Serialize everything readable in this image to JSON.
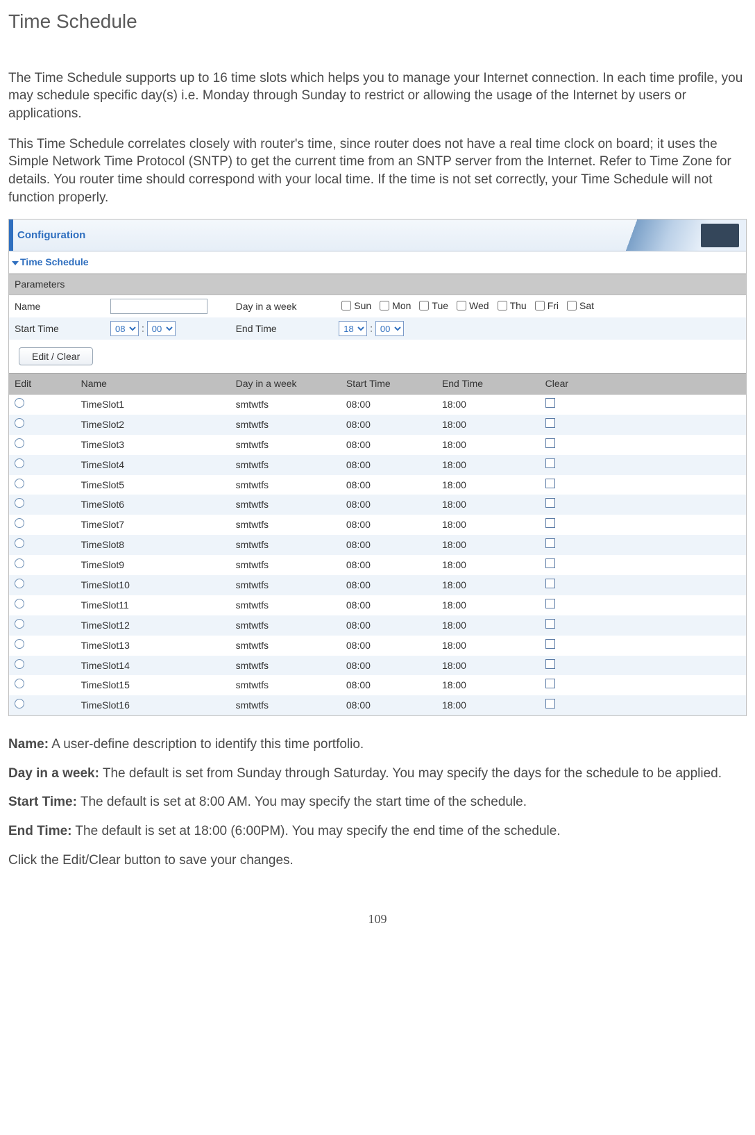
{
  "title": "Time Schedule",
  "intro_p1": "The Time Schedule supports up to 16 time slots which helps you to manage your Internet connection. In each time profile, you may schedule specific day(s) i.e. Monday through Sunday to restrict or allowing the usage of the Internet by users or applications.",
  "intro_p2": "This Time Schedule correlates closely with router's time, since router does not have a real time clock on board; it uses the Simple Network Time Protocol (SNTP) to get the current time from an SNTP server from the Internet. Refer to Time Zone for details.  You router time should correspond with your local time.  If the time is not set correctly, your Time Schedule will not function properly.",
  "screenshot": {
    "config_label": "Configuration",
    "section_title": "Time Schedule",
    "parameters_label": "Parameters",
    "labels": {
      "name": "Name",
      "day_in_week": "Day in a week",
      "start_time": "Start Time",
      "end_time": "End Time"
    },
    "name_value": "",
    "days": [
      "Sun",
      "Mon",
      "Tue",
      "Wed",
      "Thu",
      "Fri",
      "Sat"
    ],
    "start_hour": "08",
    "start_min": "00",
    "end_hour": "18",
    "end_min": "00",
    "button_label": "Edit / Clear",
    "columns": {
      "edit": "Edit",
      "name": "Name",
      "day": "Day in a week",
      "start": "Start Time",
      "end": "End Time",
      "clear": "Clear"
    },
    "slots": [
      {
        "name": "TimeSlot1",
        "day": "smtwtfs",
        "start": "08:00",
        "end": "18:00"
      },
      {
        "name": "TimeSlot2",
        "day": "smtwtfs",
        "start": "08:00",
        "end": "18:00"
      },
      {
        "name": "TimeSlot3",
        "day": "smtwtfs",
        "start": "08:00",
        "end": "18:00"
      },
      {
        "name": "TimeSlot4",
        "day": "smtwtfs",
        "start": "08:00",
        "end": "18:00"
      },
      {
        "name": "TimeSlot5",
        "day": "smtwtfs",
        "start": "08:00",
        "end": "18:00"
      },
      {
        "name": "TimeSlot6",
        "day": "smtwtfs",
        "start": "08:00",
        "end": "18:00"
      },
      {
        "name": "TimeSlot7",
        "day": "smtwtfs",
        "start": "08:00",
        "end": "18:00"
      },
      {
        "name": "TimeSlot8",
        "day": "smtwtfs",
        "start": "08:00",
        "end": "18:00"
      },
      {
        "name": "TimeSlot9",
        "day": "smtwtfs",
        "start": "08:00",
        "end": "18:00"
      },
      {
        "name": "TimeSlot10",
        "day": "smtwtfs",
        "start": "08:00",
        "end": "18:00"
      },
      {
        "name": "TimeSlot11",
        "day": "smtwtfs",
        "start": "08:00",
        "end": "18:00"
      },
      {
        "name": "TimeSlot12",
        "day": "smtwtfs",
        "start": "08:00",
        "end": "18:00"
      },
      {
        "name": "TimeSlot13",
        "day": "smtwtfs",
        "start": "08:00",
        "end": "18:00"
      },
      {
        "name": "TimeSlot14",
        "day": "smtwtfs",
        "start": "08:00",
        "end": "18:00"
      },
      {
        "name": "TimeSlot15",
        "day": "smtwtfs",
        "start": "08:00",
        "end": "18:00"
      },
      {
        "name": "TimeSlot16",
        "day": "smtwtfs",
        "start": "08:00",
        "end": "18:00"
      }
    ]
  },
  "fields": {
    "name": {
      "label": "Name:",
      "text": " A user-define description to identify this time portfolio."
    },
    "day": {
      "label": "Day in a week:",
      "text": " The default is set from Sunday through Saturday. You may specify the days for the schedule to be applied."
    },
    "start": {
      "label": "Start Time:",
      "text": " The default is set at 8:00 AM.  You may specify the start time of the schedule."
    },
    "end": {
      "label": "End Time:",
      "text": " The default is set at 18:00 (6:00PM). You may specify the end time of the schedule."
    }
  },
  "closing": "Click the Edit/Clear button to save your changes.",
  "page_number": "109"
}
